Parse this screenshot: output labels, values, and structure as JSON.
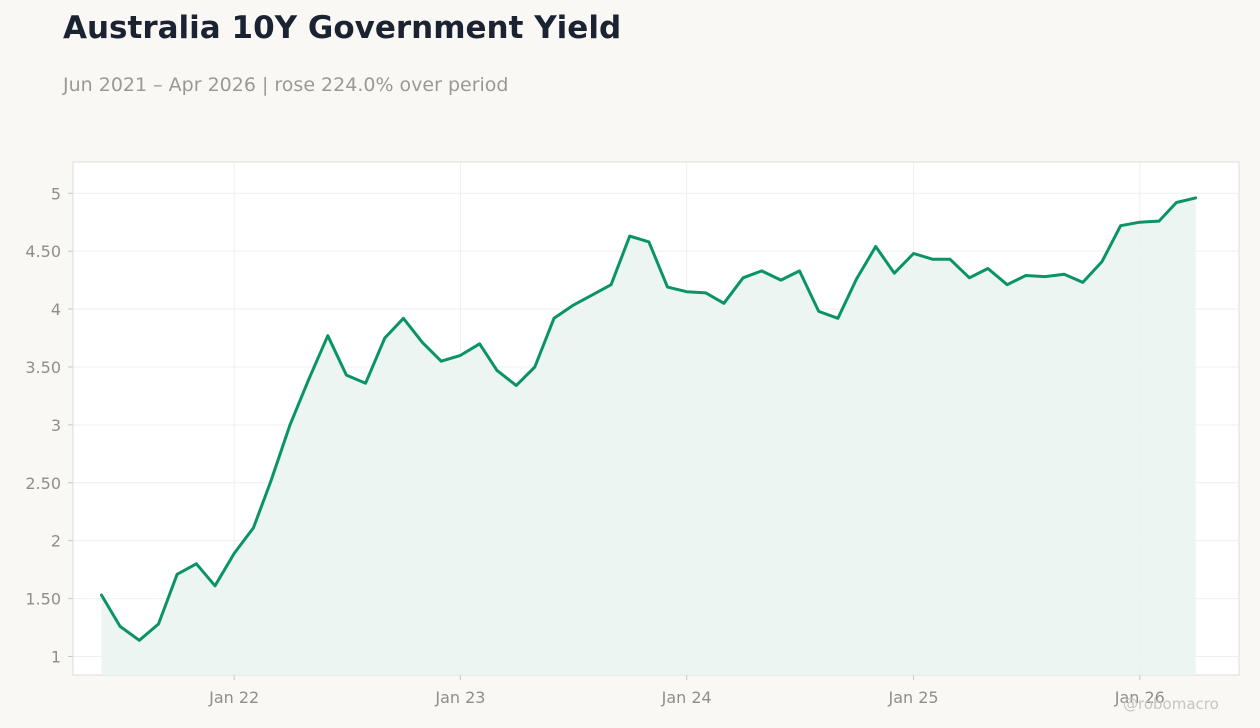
{
  "title": "Australia 10Y Government Yield",
  "subtitle": "Jun 2021 – Apr 2026 | rose 224.0% over period",
  "watermark": "@robomacro",
  "colors": {
    "line": "#0a9466",
    "area": "#eaf4ef",
    "plot_background": "#ffffff",
    "page_background": "#f9f8f4",
    "grid": "#efefec",
    "title": "#1b2333",
    "muted": "#9a9994"
  },
  "chart_data": {
    "type": "area",
    "title": "Australia 10Y Government Yield",
    "subtitle": "Jun 2021 – Apr 2026 | rose 224.0% over period",
    "xlabel": "",
    "ylabel": "",
    "x": [
      "2021-06",
      "2021-07",
      "2021-08",
      "2021-09",
      "2021-10",
      "2021-11",
      "2021-12",
      "2022-01",
      "2022-02",
      "2022-03",
      "2022-04",
      "2022-05",
      "2022-06",
      "2022-07",
      "2022-08",
      "2022-09",
      "2022-10",
      "2022-11",
      "2022-12",
      "2023-01",
      "2023-02",
      "2023-03",
      "2023-04",
      "2023-05",
      "2023-06",
      "2023-07",
      "2023-08",
      "2023-09",
      "2023-10",
      "2023-11",
      "2023-12",
      "2024-01",
      "2024-02",
      "2024-03",
      "2024-04",
      "2024-05",
      "2024-06",
      "2024-07",
      "2024-08",
      "2024-09",
      "2024-10",
      "2024-11",
      "2024-12",
      "2025-01",
      "2025-02",
      "2025-03",
      "2025-04",
      "2025-05",
      "2025-06",
      "2025-07",
      "2025-08",
      "2025-09",
      "2025-10",
      "2025-11",
      "2025-12",
      "2026-01",
      "2026-02",
      "2026-03",
      "2026-04"
    ],
    "series": [
      {
        "values": [
          1.53,
          1.26,
          1.14,
          1.28,
          1.71,
          1.8,
          1.61,
          1.89,
          2.11,
          2.51,
          3.0,
          3.39,
          3.77,
          3.43,
          3.36,
          3.75,
          3.92,
          3.71,
          3.55,
          3.6,
          3.7,
          3.47,
          3.34,
          3.5,
          3.92,
          4.03,
          4.12,
          4.21,
          4.63,
          4.58,
          4.19,
          4.15,
          4.14,
          4.05,
          4.27,
          4.33,
          4.25,
          4.33,
          3.98,
          3.92,
          4.26,
          4.54,
          4.31,
          4.48,
          4.43,
          4.43,
          4.27,
          4.35,
          4.21,
          4.29,
          4.28,
          4.3,
          4.23,
          4.41,
          4.72,
          4.75,
          4.76,
          4.92,
          4.96
        ]
      }
    ],
    "ylim": [
      0.84,
      5.27
    ],
    "xlim": [
      "2021-04-16",
      "2026-06-10"
    ],
    "yticks": [
      1,
      1.5,
      2,
      2.5,
      3,
      3.5,
      4,
      4.5,
      5
    ],
    "ytick_labels": [
      "1",
      "1.50",
      "2",
      "2.50",
      "3",
      "3.50",
      "4",
      "4.50",
      "5"
    ],
    "xticks": [
      "2022-01-01",
      "2023-01-01",
      "2024-01-01",
      "2025-01-01",
      "2026-01-01"
    ],
    "xtick_labels": [
      "Jan 22",
      "Jan 23",
      "Jan 24",
      "Jan 25",
      "Jan 26"
    ],
    "grid": true,
    "legend": "none"
  }
}
